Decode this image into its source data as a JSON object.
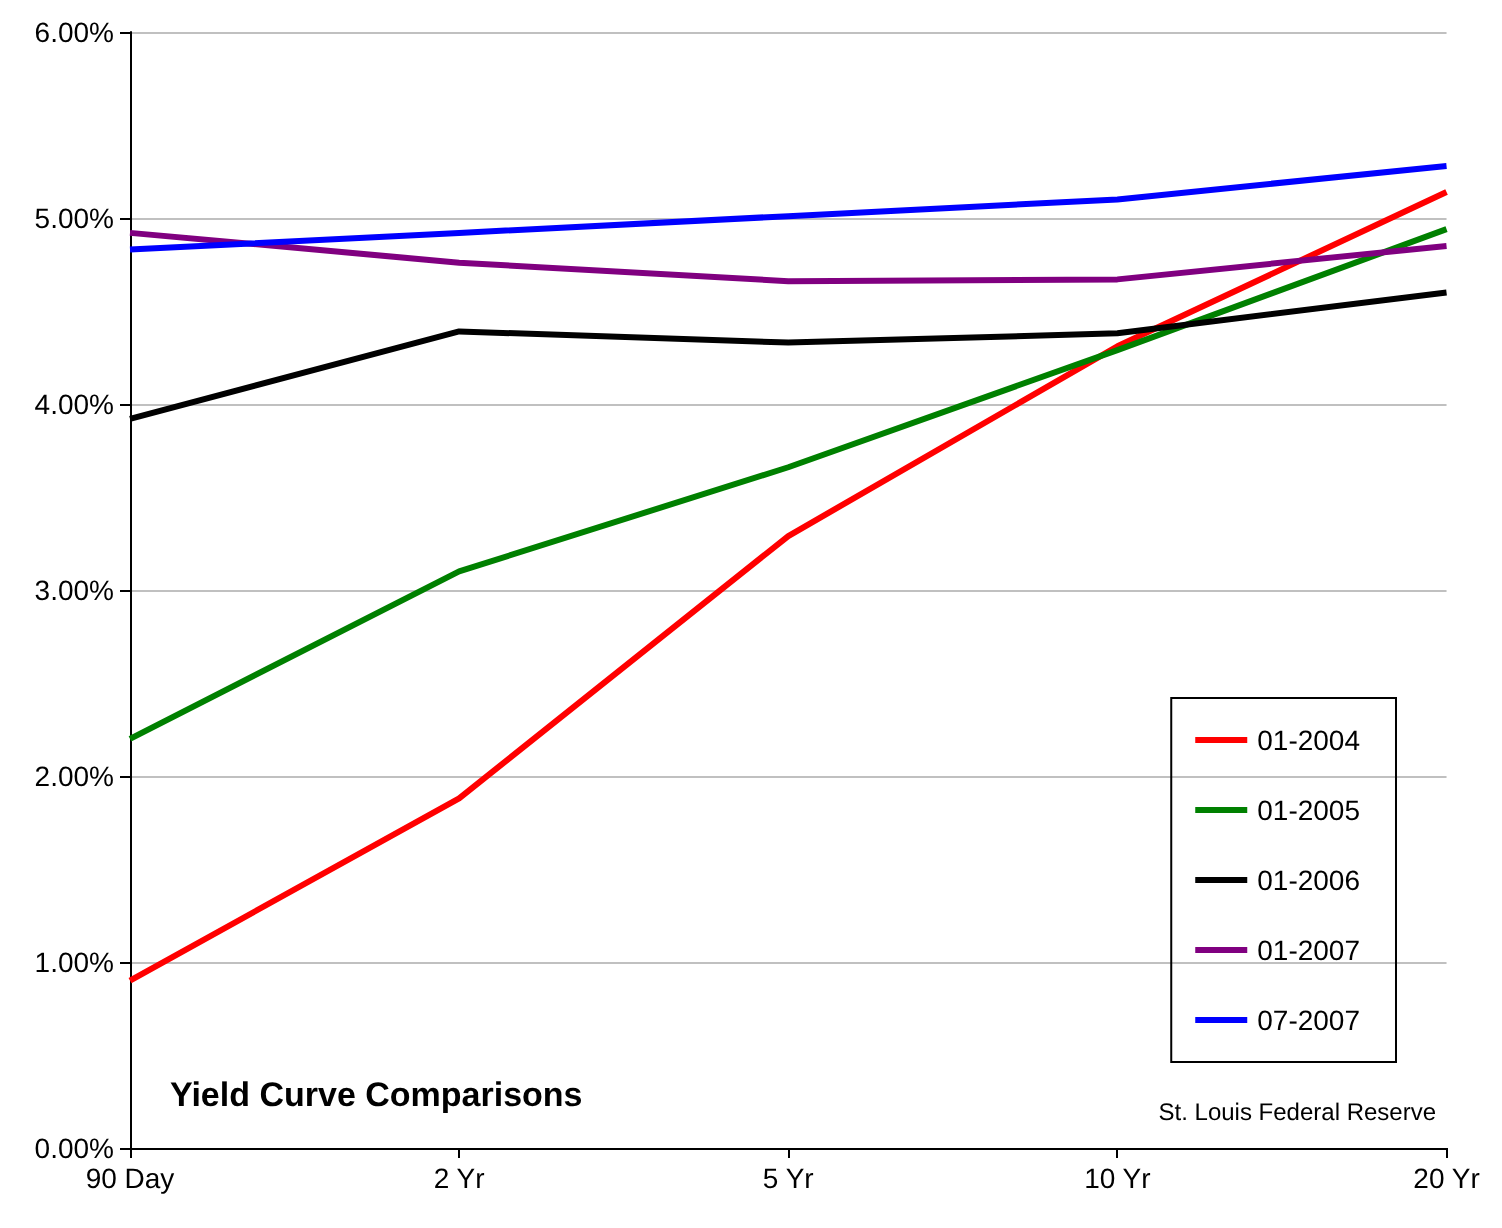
{
  "chart_data": {
    "type": "line",
    "title": "Yield Curve Comparisons",
    "categories": [
      "90 Day",
      "2 Yr",
      "5 Yr",
      "10 Yr",
      "20 Yr"
    ],
    "series": [
      {
        "name": "01-2004",
        "color": "#ff0000",
        "values": [
          0.9,
          1.88,
          3.29,
          4.31,
          5.14
        ]
      },
      {
        "name": "01-2005",
        "color": "#008000",
        "values": [
          2.2,
          3.1,
          3.66,
          4.29,
          4.94
        ]
      },
      {
        "name": "01-2006",
        "color": "#000000",
        "values": [
          3.92,
          4.39,
          4.33,
          4.38,
          4.6
        ]
      },
      {
        "name": "01-2007",
        "color": "#800080",
        "values": [
          4.92,
          4.76,
          4.66,
          4.67,
          4.85
        ]
      },
      {
        "name": "07-2007",
        "color": "#0000ff",
        "values": [
          4.83,
          4.92,
          5.01,
          5.1,
          5.28
        ]
      }
    ],
    "ylim": [
      0,
      6
    ],
    "yticks": [
      {
        "value": 0,
        "label": "0.00%"
      },
      {
        "value": 1,
        "label": "1.00%"
      },
      {
        "value": 2,
        "label": "2.00%"
      },
      {
        "value": 3,
        "label": "3.00%"
      },
      {
        "value": 4,
        "label": "4.00%"
      },
      {
        "value": 5,
        "label": "5.00%"
      },
      {
        "value": 6,
        "label": "6.00%"
      }
    ],
    "grid": "y",
    "legend": "bottom right",
    "marker": "none",
    "annotations": [
      "St. Louis Federal Reserve"
    ]
  }
}
